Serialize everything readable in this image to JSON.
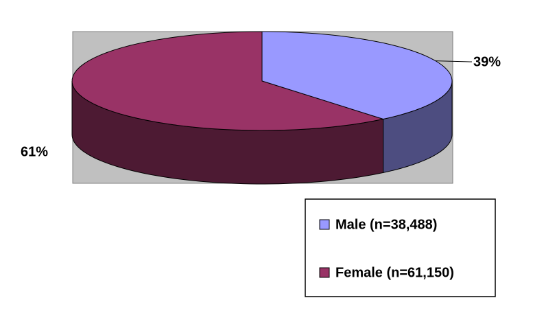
{
  "chart_data": {
    "type": "pie",
    "categories": [
      "Male (n=38,488)",
      "Female (n=61,150)"
    ],
    "values": [
      39,
      61
    ],
    "value_labels": [
      "39%",
      "61%"
    ],
    "colors": [
      "#9999ff",
      "#993366"
    ],
    "legend": "bottom-right"
  }
}
